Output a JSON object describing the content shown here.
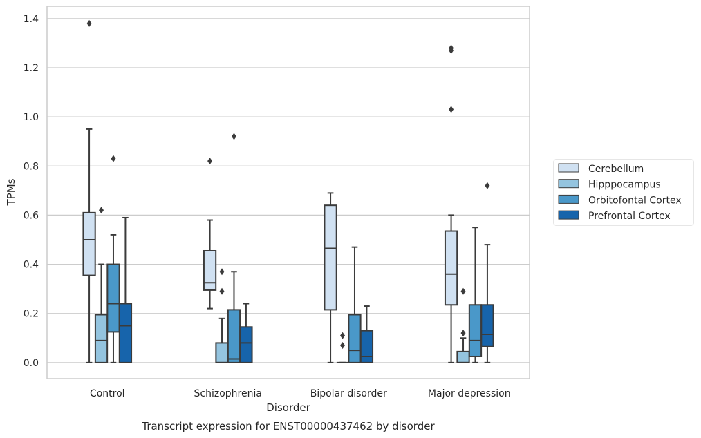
{
  "chart_data": {
    "type": "box",
    "title": "",
    "caption": "Transcript expression for ENST00000437462 by disorder",
    "xlabel": "Disorder",
    "ylabel": "TPMs",
    "ylim": [
      -0.065,
      1.45
    ],
    "yticks": [
      0.0,
      0.2,
      0.4,
      0.6,
      0.8,
      1.0,
      1.2,
      1.4
    ],
    "ytick_labels": [
      "0.0",
      "0.2",
      "0.4",
      "0.6",
      "0.8",
      "1.0",
      "1.2",
      "1.4"
    ],
    "grid": "horizontal",
    "legend_position": "right",
    "categories": [
      "Control",
      "Schizophrenia",
      "Bipolar disorder",
      "Major depression"
    ],
    "series": [
      {
        "name": "Cerebellum",
        "color": "#d0e1f2",
        "boxes": [
          {
            "whisker_low": 0.0,
            "q1": 0.355,
            "median": 0.5,
            "q3": 0.61,
            "whisker_high": 0.95,
            "outliers": [
              1.38
            ]
          },
          {
            "whisker_low": 0.22,
            "q1": 0.295,
            "median": 0.325,
            "q3": 0.455,
            "whisker_high": 0.58,
            "outliers": [
              0.82
            ]
          },
          {
            "whisker_low": 0.0,
            "q1": 0.215,
            "median": 0.465,
            "q3": 0.64,
            "whisker_high": 0.69,
            "outliers": []
          },
          {
            "whisker_low": 0.0,
            "q1": 0.235,
            "median": 0.36,
            "q3": 0.535,
            "whisker_high": 0.6,
            "outliers": [
              1.03,
              1.27,
              1.28
            ]
          }
        ]
      },
      {
        "name": "Hipppocampus",
        "color": "#94c4df",
        "boxes": [
          {
            "whisker_low": 0.0,
            "q1": 0.0,
            "median": 0.09,
            "q3": 0.195,
            "whisker_high": 0.4,
            "outliers": [
              0.62
            ]
          },
          {
            "whisker_low": 0.0,
            "q1": 0.0,
            "median": 0.0,
            "q3": 0.08,
            "whisker_high": 0.18,
            "outliers": [
              0.29,
              0.37
            ]
          },
          {
            "whisker_low": 0.0,
            "q1": 0.0,
            "median": 0.0,
            "q3": 0.0,
            "whisker_high": 0.0,
            "outliers": [
              0.07,
              0.11
            ]
          },
          {
            "whisker_low": 0.0,
            "q1": 0.0,
            "median": 0.0,
            "q3": 0.045,
            "whisker_high": 0.1,
            "outliers": [
              0.12,
              0.29
            ]
          }
        ]
      },
      {
        "name": "Orbitofontal Cortex",
        "color": "#4a98c9",
        "boxes": [
          {
            "whisker_low": 0.0,
            "q1": 0.125,
            "median": 0.24,
            "q3": 0.4,
            "whisker_high": 0.52,
            "outliers": [
              0.83
            ]
          },
          {
            "whisker_low": 0.0,
            "q1": 0.0,
            "median": 0.015,
            "q3": 0.215,
            "whisker_high": 0.37,
            "outliers": [
              0.92
            ]
          },
          {
            "whisker_low": 0.0,
            "q1": 0.0,
            "median": 0.05,
            "q3": 0.195,
            "whisker_high": 0.47,
            "outliers": []
          },
          {
            "whisker_low": 0.0,
            "q1": 0.025,
            "median": 0.09,
            "q3": 0.235,
            "whisker_high": 0.55,
            "outliers": []
          }
        ]
      },
      {
        "name": "Prefrontal Cortex",
        "color": "#1764ab",
        "boxes": [
          {
            "whisker_low": 0.0,
            "q1": 0.0,
            "median": 0.15,
            "q3": 0.24,
            "whisker_high": 0.59,
            "outliers": []
          },
          {
            "whisker_low": 0.0,
            "q1": 0.0,
            "median": 0.08,
            "q3": 0.145,
            "whisker_high": 0.24,
            "outliers": []
          },
          {
            "whisker_low": 0.0,
            "q1": 0.0,
            "median": 0.025,
            "q3": 0.13,
            "whisker_high": 0.23,
            "outliers": []
          },
          {
            "whisker_low": 0.0,
            "q1": 0.065,
            "median": 0.115,
            "q3": 0.235,
            "whisker_high": 0.48,
            "outliers": [
              0.72
            ]
          }
        ]
      }
    ],
    "colors": {
      "axes_edge": "#cccccc",
      "grid": "#cccccc",
      "box_edge": "#3b3b3b"
    }
  }
}
